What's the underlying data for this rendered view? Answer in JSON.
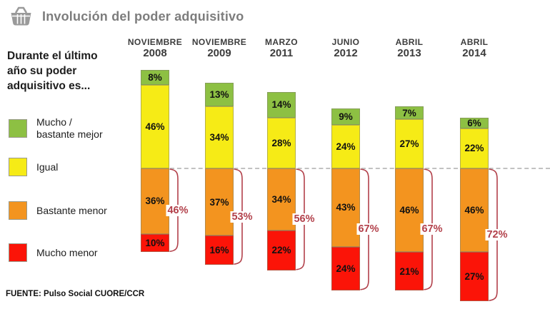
{
  "header": {
    "title": "Involución del poder adquisitivo",
    "icon": "basket-icon"
  },
  "question": {
    "text": "Durante el último\naño su poder\nadquisitivo es..."
  },
  "legend": {
    "items": [
      {
        "key": "mucho-bastante-mejor",
        "label": "Mucho /\nbastante mejor",
        "color": "#8dc043"
      },
      {
        "key": "igual",
        "label": "Igual",
        "color": "#f6eb16"
      },
      {
        "key": "bastante-menor",
        "label": "Bastante menor",
        "color": "#f3941f"
      },
      {
        "key": "mucho-menor",
        "label": "Mucho menor",
        "color": "#fb1408"
      }
    ]
  },
  "chart_data": {
    "type": "bar",
    "subtype": "stacked-vertical",
    "title": "Involución del poder adquisitivo",
    "unit": "%",
    "legend_position": "left",
    "categories": [
      [
        "NOVIEMBRE",
        "2008"
      ],
      [
        "NOVIEMBRE",
        "2009"
      ],
      [
        "MARZO",
        "2011"
      ],
      [
        "JUNIO",
        "2012"
      ],
      [
        "ABRIL",
        "2013"
      ],
      [
        "ABRIL",
        "2014"
      ]
    ],
    "series": [
      {
        "name": "Mucho / bastante mejor",
        "color": "#8dc043",
        "values": [
          8,
          13,
          14,
          9,
          7,
          6
        ]
      },
      {
        "name": "Igual",
        "color": "#f6eb16",
        "values": [
          46,
          34,
          28,
          24,
          27,
          22
        ]
      },
      {
        "name": "Bastante menor",
        "color": "#f3941f",
        "values": [
          36,
          37,
          34,
          43,
          46,
          46
        ]
      },
      {
        "name": "Mucho menor",
        "color": "#fb1408",
        "values": [
          10,
          16,
          22,
          24,
          21,
          27
        ]
      }
    ],
    "brackets": {
      "description": "Bastante menor + Mucho menor combined",
      "values": [
        46,
        53,
        56,
        67,
        67,
        72
      ],
      "suffix": "%",
      "color": "#b2404a"
    },
    "guideline": "gray dashed line at the Igual / Bastante menor boundary"
  },
  "footer": {
    "source": "FUENTE: Pulso Social CUORE/CCR"
  }
}
